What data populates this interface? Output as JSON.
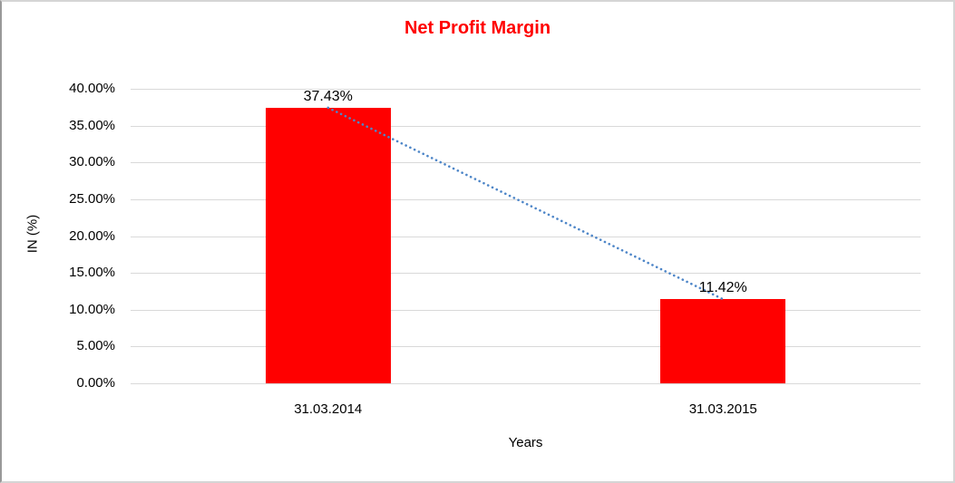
{
  "chart_data": {
    "type": "bar",
    "title": "Net Profit Margin",
    "categories": [
      "31.03.2014",
      "31.03.2015"
    ],
    "values": [
      37.43,
      11.42
    ],
    "value_labels": [
      "37.43%",
      "11.42%"
    ],
    "xlabel": "Years",
    "ylabel": "IN (%)",
    "ylim": [
      0,
      40
    ],
    "ytick_step": 5,
    "ytick_labels": [
      "0.00%",
      "5.00%",
      "10.00%",
      "15.00%",
      "20.00%",
      "25.00%",
      "30.00%",
      "35.00%",
      "40.00%"
    ],
    "grid": true,
    "legend": "none",
    "trendline": {
      "type": "linear",
      "style": "dotted"
    },
    "colors": {
      "bar": "#FF0000",
      "title": "#FF0000",
      "gridline": "#D9D9D9",
      "trendline": "#4E86C8",
      "text": "#000000"
    }
  }
}
